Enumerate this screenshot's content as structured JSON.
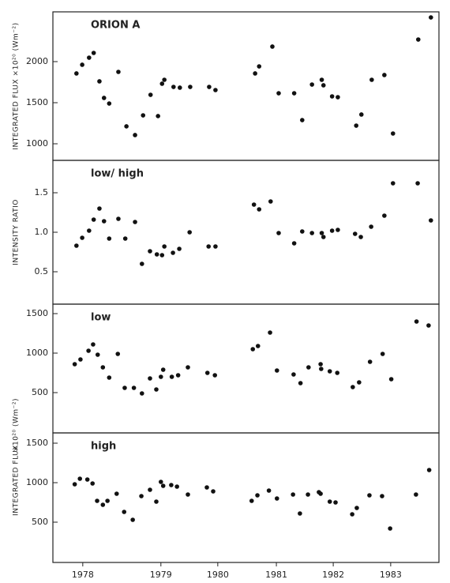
{
  "chart_data": [
    {
      "type": "scatter",
      "title": "ORION A",
      "ylabel": "INTEGRATED FLUX ×10²⁰ (Wm⁻²)",
      "color": "#111111",
      "xlim": [
        1977.63,
        1984.35
      ],
      "ylim": [
        798,
        2606
      ],
      "yticks": [
        1000,
        1500,
        2000
      ],
      "x": [
        1978.04,
        1978.14,
        1978.26,
        1978.34,
        1978.44,
        1978.52,
        1978.61,
        1978.77,
        1978.91,
        1979.06,
        1979.2,
        1979.33,
        1979.46,
        1979.53,
        1979.57,
        1979.73,
        1979.84,
        1980.02,
        1980.35,
        1980.46,
        1981.15,
        1981.22,
        1981.45,
        1981.56,
        1981.83,
        1981.97,
        1982.14,
        1982.31,
        1982.34,
        1982.49,
        1982.59,
        1982.91,
        1983.0,
        1983.18,
        1983.4,
        1983.55,
        1983.99,
        1984.21
      ],
      "values": [
        1856,
        1962,
        2048,
        2106,
        1760,
        1558,
        1490,
        1875,
        1212,
        1106,
        1346,
        1596,
        1337,
        1731,
        1779,
        1692,
        1683,
        1692,
        1692,
        1654,
        1856,
        1942,
        2183,
        1615,
        1615,
        1288,
        1721,
        1779,
        1712,
        1577,
        1567,
        1221,
        1356,
        1779,
        1837,
        1125,
        2269,
        2538
      ]
    },
    {
      "type": "scatter",
      "title": "low/ high",
      "ylabel": "INTENSITY RATIO",
      "color": "#111111",
      "xlim": [
        1977.63,
        1984.35
      ],
      "ylim": [
        0.09,
        1.91
      ],
      "yticks": [
        0.5,
        {
          "value": 1,
          "label": "1.0"
        },
        1.5
      ],
      "x": [
        1978.04,
        1978.14,
        1978.26,
        1978.34,
        1978.44,
        1978.52,
        1978.61,
        1978.77,
        1978.89,
        1979.06,
        1979.18,
        1979.32,
        1979.44,
        1979.53,
        1979.57,
        1979.72,
        1979.83,
        1980.01,
        1980.34,
        1980.46,
        1981.13,
        1981.22,
        1981.42,
        1981.56,
        1981.83,
        1981.97,
        1982.14,
        1982.31,
        1982.34,
        1982.49,
        1982.59,
        1982.89,
        1982.99,
        1983.17,
        1983.4,
        1983.55,
        1983.98,
        1984.21
      ],
      "values": [
        0.83,
        0.93,
        1.02,
        1.16,
        1.3,
        1.14,
        0.92,
        1.17,
        0.92,
        1.13,
        0.6,
        0.76,
        0.72,
        0.71,
        0.82,
        0.74,
        0.79,
        1.0,
        0.82,
        0.82,
        1.35,
        1.29,
        1.39,
        0.99,
        0.86,
        1.01,
        0.99,
        0.99,
        0.94,
        1.02,
        1.03,
        0.98,
        0.94,
        1.07,
        1.21,
        1.62,
        1.62,
        1.15
      ]
    },
    {
      "type": "scatter",
      "title": "low",
      "ylabel": "×10²⁰ (Wm⁻²)",
      "color": "#111111",
      "xlim": [
        1977.63,
        1984.35
      ],
      "ylim": [
        -10,
        1620
      ],
      "yticks": [
        500,
        1000,
        1500
      ],
      "x": [
        1978.01,
        1978.11,
        1978.25,
        1978.33,
        1978.41,
        1978.5,
        1978.61,
        1978.76,
        1978.88,
        1979.04,
        1979.18,
        1979.32,
        1979.43,
        1979.51,
        1979.55,
        1979.7,
        1979.81,
        1979.98,
        1980.32,
        1980.45,
        1981.11,
        1981.2,
        1981.41,
        1981.53,
        1981.82,
        1981.94,
        1982.08,
        1982.29,
        1982.3,
        1982.45,
        1982.58,
        1982.85,
        1982.96,
        1983.15,
        1983.37,
        1983.52,
        1983.96,
        1984.17
      ],
      "values": [
        860,
        920,
        1030,
        1110,
        980,
        820,
        690,
        990,
        560,
        560,
        490,
        680,
        540,
        700,
        790,
        700,
        720,
        820,
        750,
        720,
        1050,
        1090,
        1260,
        780,
        730,
        620,
        820,
        860,
        800,
        770,
        750,
        570,
        630,
        890,
        990,
        670,
        1400,
        1350
      ]
    },
    {
      "type": "scatter",
      "title": "high",
      "ylabel": "INTEGRATED FLUX",
      "color": "#111111",
      "xlim": [
        1977.63,
        1984.35
      ],
      "ylim": [
        -10,
        1630
      ],
      "yticks": [
        500,
        1000,
        1500
      ],
      "xticks": [
        {
          "value": 1978.15,
          "label": "1978"
        },
        {
          "value": 1979.51,
          "label": "1979"
        },
        {
          "value": 1980.5,
          "label": "1980"
        },
        {
          "value": 1981.52,
          "label": "1981"
        },
        {
          "value": 1982.51,
          "label": "1982"
        },
        {
          "value": 1983.51,
          "label": "1983"
        }
      ],
      "x": [
        1978.01,
        1978.1,
        1978.23,
        1978.32,
        1978.4,
        1978.5,
        1978.58,
        1978.74,
        1978.87,
        1979.02,
        1979.17,
        1979.32,
        1979.43,
        1979.51,
        1979.55,
        1979.69,
        1979.79,
        1979.98,
        1980.31,
        1980.42,
        1981.09,
        1981.19,
        1981.39,
        1981.53,
        1981.81,
        1981.93,
        1982.07,
        1982.26,
        1982.29,
        1982.45,
        1982.55,
        1982.84,
        1982.92,
        1983.14,
        1983.36,
        1983.5,
        1983.95,
        1984.18
      ],
      "values": [
        980,
        1050,
        1040,
        990,
        770,
        720,
        770,
        860,
        630,
        530,
        830,
        910,
        760,
        1010,
        960,
        970,
        950,
        850,
        940,
        890,
        770,
        840,
        900,
        800,
        850,
        610,
        850,
        880,
        860,
        760,
        750,
        600,
        680,
        840,
        830,
        420,
        850,
        1160
      ]
    }
  ]
}
